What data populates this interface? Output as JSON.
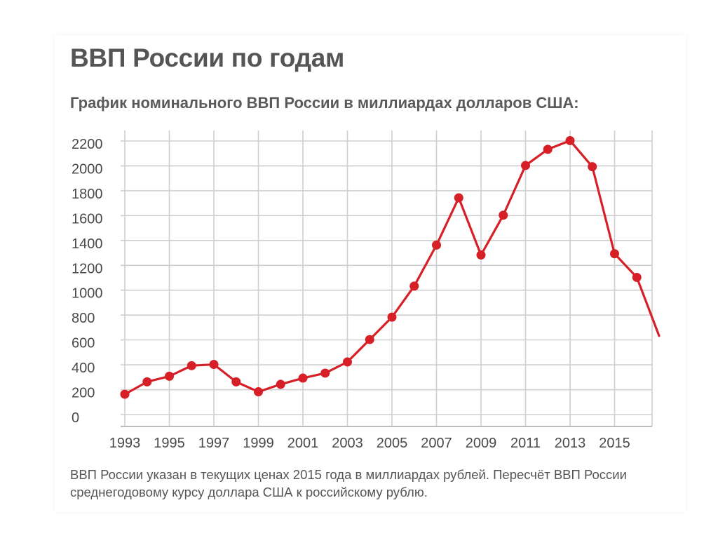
{
  "title": "ВВП России по годам",
  "subtitle": "График номинального ВВП России в миллиардах долларов США:",
  "footnote": "ВВП России указан в текущих ценах 2015 года в миллиардах рублей. Пересчёт ВВП России среднегодовому курсу доллара США к российскому рублю.",
  "colors": {
    "line": "#d61f26",
    "grid": "#cfcfcf",
    "text": "#4a4a4a"
  },
  "chart_data": {
    "type": "line",
    "title": "График номинального ВВП России в миллиардах долларов США:",
    "xlabel": "",
    "ylabel": "",
    "x": [
      1993,
      1994,
      1995,
      1996,
      1997,
      1998,
      1999,
      2000,
      2001,
      2002,
      2003,
      2004,
      2005,
      2006,
      2007,
      2008,
      2009,
      2010,
      2011,
      2012,
      2013,
      2014,
      2015,
      2016,
      2017
    ],
    "series": [
      {
        "values": [
          180,
          280,
          325,
          410,
          420,
          280,
          200,
          260,
          310,
          350,
          440,
          620,
          800,
          1050,
          1380,
          1760,
          1300,
          1620,
          2020,
          2150,
          2220,
          2010,
          1310,
          1120,
          650
        ]
      }
    ],
    "markers_until_index": 23,
    "x_ticks": [
      1993,
      1995,
      1997,
      1999,
      2001,
      2003,
      2005,
      2007,
      2009,
      2011,
      2013,
      2015
    ],
    "y_ticks": [
      0,
      200,
      400,
      600,
      800,
      1000,
      1200,
      1400,
      1600,
      1800,
      2000,
      2200
    ],
    "xlim": [
      1993,
      2017
    ],
    "ylim": [
      0,
      2200
    ],
    "grid": true,
    "legend": "none"
  }
}
